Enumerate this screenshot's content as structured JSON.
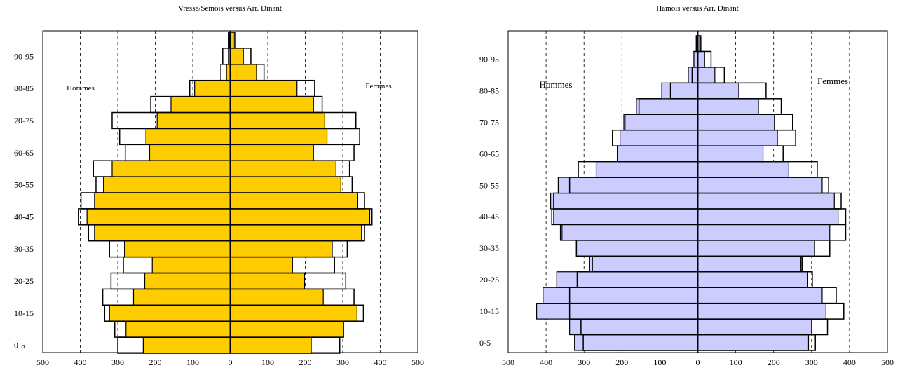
{
  "colors": {
    "left_fill": "#FFCC00",
    "right_fill": "#CCCCFF",
    "outline": "#000000"
  },
  "chart_data": [
    {
      "type": "bar",
      "orientation": "population-pyramid",
      "title": "Vresse/Semois versus Arr. Dinant",
      "left_label": "Hommes",
      "right_label": "Femmes",
      "xlim": [
        -500,
        500
      ],
      "x_ticks": [
        "500",
        "400",
        "300",
        "200",
        "100",
        "0",
        "100",
        "200",
        "300",
        "400",
        "500"
      ],
      "y_tick_labels": [
        "0-5",
        "10-15",
        "20-25",
        "30-35",
        "40-45",
        "50-55",
        "60-65",
        "70-75",
        "80-85",
        "90-95"
      ],
      "categories": [
        "0-5",
        "5-10",
        "10-15",
        "15-20",
        "20-25",
        "25-30",
        "30-35",
        "35-40",
        "40-45",
        "45-50",
        "50-55",
        "55-60",
        "60-65",
        "65-70",
        "70-75",
        "75-80",
        "80-85",
        "85-90",
        "90-95",
        "95+"
      ],
      "grid": "vertical dashed at 100-step",
      "series": [
        {
          "values_men": [
            -232,
            -278,
            -322,
            -258,
            -228,
            -208,
            -282,
            -362,
            -382,
            -362,
            -338,
            -315,
            -215,
            -225,
            -195,
            -158,
            -95,
            -10,
            -5,
            -2
          ],
          "values_women": [
            216,
            302,
            338,
            248,
            198,
            166,
            272,
            350,
            372,
            340,
            295,
            282,
            222,
            258,
            252,
            222,
            178,
            70,
            35,
            8
          ]
        },
        {
          "values_men": [
            -300,
            -308,
            -335,
            -340,
            -318,
            -285,
            -322,
            -378,
            -405,
            -398,
            -358,
            -365,
            -280,
            -295,
            -315,
            -212,
            -108,
            -25,
            -20,
            -5
          ],
          "values_women": [
            292,
            302,
            355,
            330,
            308,
            278,
            312,
            358,
            378,
            358,
            325,
            318,
            330,
            345,
            335,
            245,
            225,
            90,
            55,
            12
          ]
        }
      ]
    },
    {
      "type": "bar",
      "orientation": "population-pyramid",
      "title": "Hamois versus Arr. Dinant",
      "left_label": "Hommes",
      "right_label": "Femmes",
      "xlim": [
        -500,
        500
      ],
      "x_ticks": [
        "500",
        "400",
        "300",
        "200",
        "100",
        "0",
        "100",
        "200",
        "300",
        "400",
        "500"
      ],
      "y_tick_labels": [
        "0-5",
        "10-15",
        "20-25",
        "30-35",
        "40-45",
        "50-55",
        "60-65",
        "70-75",
        "80-85",
        "90-95"
      ],
      "categories": [
        "0-5",
        "5-10",
        "10-15",
        "15-20",
        "20-25",
        "25-30",
        "30-35",
        "35-40",
        "40-45",
        "45-50",
        "50-55",
        "55-60",
        "60-65",
        "65-70",
        "70-75",
        "75-80",
        "80-85",
        "85-90",
        "90-95",
        "95+"
      ],
      "grid": "vertical dashed at 100-step",
      "series": [
        {
          "values_men": [
            -325,
            -338,
            -425,
            -408,
            -372,
            -285,
            -320,
            -358,
            -380,
            -388,
            -368,
            -268,
            -212,
            -205,
            -195,
            -162,
            -95,
            -25,
            -12,
            -3
          ],
          "values_women": [
            292,
            300,
            338,
            328,
            290,
            272,
            308,
            348,
            370,
            360,
            328,
            240,
            172,
            210,
            202,
            160,
            108,
            45,
            18,
            5
          ]
        },
        {
          "values_men": [
            -302,
            -308,
            -338,
            -338,
            -318,
            -278,
            -320,
            -362,
            -385,
            -380,
            -338,
            -315,
            -212,
            -225,
            -192,
            -155,
            -72,
            -15,
            -8,
            -4
          ],
          "values_women": [
            310,
            342,
            385,
            365,
            302,
            275,
            348,
            390,
            390,
            378,
            345,
            315,
            225,
            258,
            250,
            220,
            180,
            70,
            35,
            8
          ]
        }
      ]
    }
  ]
}
